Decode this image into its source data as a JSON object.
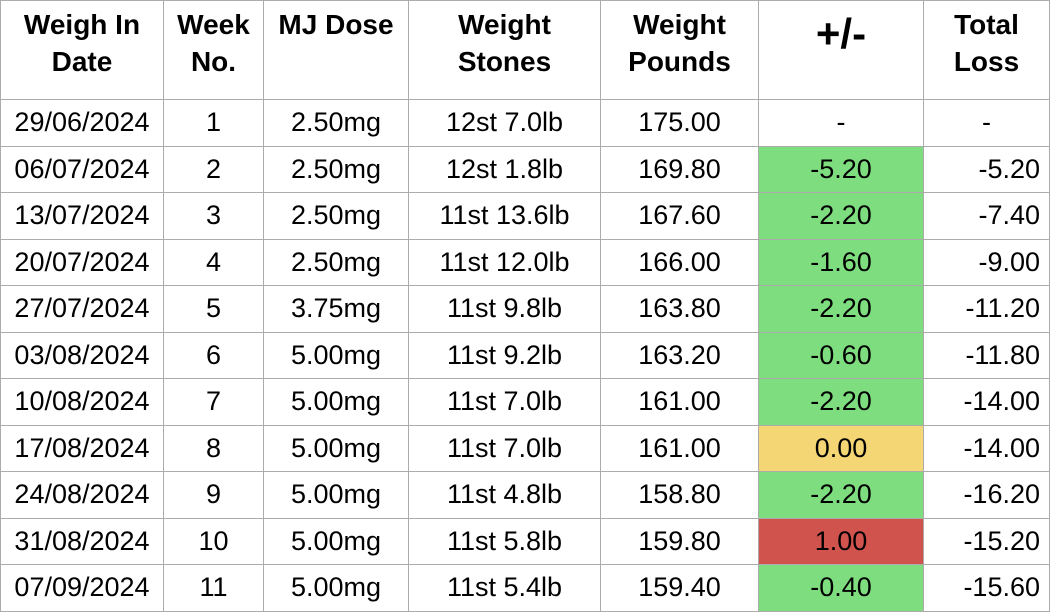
{
  "table": {
    "columns": [
      {
        "id": "date",
        "label": "Weigh In Date"
      },
      {
        "id": "week",
        "label": "Week No."
      },
      {
        "id": "dose",
        "label": "MJ Dose"
      },
      {
        "id": "stones",
        "label": "Weight Stones"
      },
      {
        "id": "pounds",
        "label": "Weight Pounds"
      },
      {
        "id": "change",
        "label": "+/-"
      },
      {
        "id": "total",
        "label": "Total Loss"
      }
    ],
    "rows": [
      {
        "date": "29/06/2024",
        "week": "1",
        "dose": "2.50mg",
        "stones": "12st 7.0lb",
        "pounds": "175.00",
        "change": "-",
        "change_status": "none",
        "total": "-"
      },
      {
        "date": "06/07/2024",
        "week": "2",
        "dose": "2.50mg",
        "stones": "12st 1.8lb",
        "pounds": "169.80",
        "change": "-5.20",
        "change_status": "decrease",
        "total": "-5.20"
      },
      {
        "date": "13/07/2024",
        "week": "3",
        "dose": "2.50mg",
        "stones": "11st 13.6lb",
        "pounds": "167.60",
        "change": "-2.20",
        "change_status": "decrease",
        "total": "-7.40"
      },
      {
        "date": "20/07/2024",
        "week": "4",
        "dose": "2.50mg",
        "stones": "11st 12.0lb",
        "pounds": "166.00",
        "change": "-1.60",
        "change_status": "decrease",
        "total": "-9.00"
      },
      {
        "date": "27/07/2024",
        "week": "5",
        "dose": "3.75mg",
        "stones": "11st 9.8lb",
        "pounds": "163.80",
        "change": "-2.20",
        "change_status": "decrease",
        "total": "-11.20"
      },
      {
        "date": "03/08/2024",
        "week": "6",
        "dose": "5.00mg",
        "stones": "11st 9.2lb",
        "pounds": "163.20",
        "change": "-0.60",
        "change_status": "decrease",
        "total": "-11.80"
      },
      {
        "date": "10/08/2024",
        "week": "7",
        "dose": "5.00mg",
        "stones": "11st 7.0lb",
        "pounds": "161.00",
        "change": "-2.20",
        "change_status": "decrease",
        "total": "-14.00"
      },
      {
        "date": "17/08/2024",
        "week": "8",
        "dose": "5.00mg",
        "stones": "11st 7.0lb",
        "pounds": "161.00",
        "change": "0.00",
        "change_status": "no_change",
        "total": "-14.00"
      },
      {
        "date": "24/08/2024",
        "week": "9",
        "dose": "5.00mg",
        "stones": "11st 4.8lb",
        "pounds": "158.80",
        "change": "-2.20",
        "change_status": "decrease",
        "total": "-16.20"
      },
      {
        "date": "31/08/2024",
        "week": "10",
        "dose": "5.00mg",
        "stones": "11st 5.8lb",
        "pounds": "159.80",
        "change": "1.00",
        "change_status": "increase",
        "total": "-15.20"
      },
      {
        "date": "07/09/2024",
        "week": "11",
        "dose": "5.00mg",
        "stones": "11st 5.4lb",
        "pounds": "159.40",
        "change": "-0.40",
        "change_status": "decrease",
        "total": "-15.60"
      }
    ]
  },
  "colors": {
    "decrease_bg": "#7edd7e",
    "no_change_bg": "#f4d674",
    "increase_bg": "#d1534e",
    "grid_line": "#ababab"
  }
}
